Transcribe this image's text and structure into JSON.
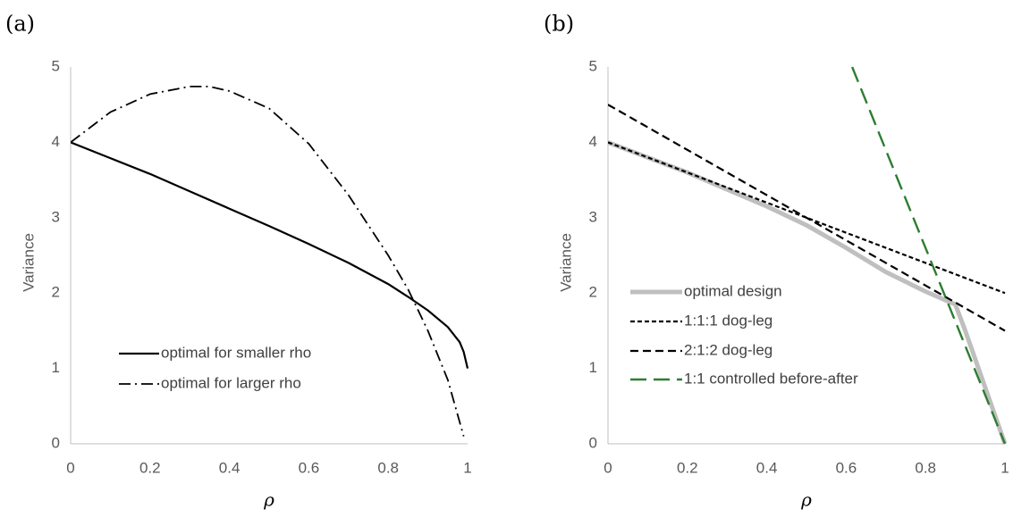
{
  "chart_data": [
    {
      "type": "line",
      "panel_label": "(a)",
      "xlabel": "ρ",
      "ylabel": "Variance",
      "xlim": [
        0,
        1
      ],
      "ylim": [
        0,
        5
      ],
      "xticks": [
        "0",
        "0.2",
        "0.4",
        "0.6",
        "0.8",
        "1"
      ],
      "yticks": [
        "0",
        "1",
        "2",
        "3",
        "4",
        "5"
      ],
      "legend_position": "bottom-right",
      "series": [
        {
          "name": "optimal for smaller rho",
          "style": "solid",
          "color": "#000000",
          "x": [
            0,
            0.1,
            0.2,
            0.3,
            0.4,
            0.5,
            0.6,
            0.7,
            0.8,
            0.85,
            0.9,
            0.95,
            0.98,
            0.99,
            1.0
          ],
          "y": [
            4.0,
            3.79,
            3.58,
            3.35,
            3.12,
            2.89,
            2.65,
            2.4,
            2.12,
            1.95,
            1.77,
            1.55,
            1.35,
            1.22,
            1.0
          ]
        },
        {
          "name": "optimal for larger rho",
          "style": "dashdot",
          "color": "#000000",
          "x": [
            0,
            0.1,
            0.2,
            0.3,
            0.35,
            0.4,
            0.5,
            0.6,
            0.7,
            0.8,
            0.85,
            0.9,
            0.95,
            0.99
          ],
          "y": [
            4.0,
            4.4,
            4.64,
            4.74,
            4.74,
            4.68,
            4.45,
            3.98,
            3.3,
            2.5,
            2.05,
            1.5,
            0.85,
            0.1
          ]
        }
      ]
    },
    {
      "type": "line",
      "panel_label": "(b)",
      "xlabel": "ρ",
      "ylabel": "Variance",
      "xlim": [
        0,
        1
      ],
      "ylim": [
        0,
        5
      ],
      "xticks": [
        "0",
        "0.2",
        "0.4",
        "0.6",
        "0.8",
        "1"
      ],
      "yticks": [
        "0",
        "1",
        "2",
        "3",
        "4",
        "5"
      ],
      "legend_position": "bottom-left",
      "series": [
        {
          "name": "optimal design",
          "style": "thick-solid",
          "color": "#bfbfbf",
          "x": [
            0,
            0.2,
            0.4,
            0.5,
            0.6,
            0.7,
            0.8,
            0.875,
            0.9,
            0.95,
            1.0
          ],
          "y": [
            4.0,
            3.6,
            3.15,
            2.9,
            2.6,
            2.28,
            2.02,
            1.85,
            1.5,
            0.75,
            0.0
          ]
        },
        {
          "name": "1:1:1 dog-leg",
          "style": "short-dash",
          "color": "#000000",
          "x": [
            0,
            1
          ],
          "y": [
            4.0,
            2.0
          ]
        },
        {
          "name": "2:1:2 dog-leg",
          "style": "dash",
          "color": "#000000",
          "x": [
            0,
            1
          ],
          "y": [
            4.5,
            1.5
          ]
        },
        {
          "name": "1:1 controlled before-after",
          "style": "long-dash",
          "color": "#2e7d32",
          "x": [
            0.615,
            1
          ],
          "y": [
            5.0,
            0.0
          ]
        }
      ]
    }
  ]
}
